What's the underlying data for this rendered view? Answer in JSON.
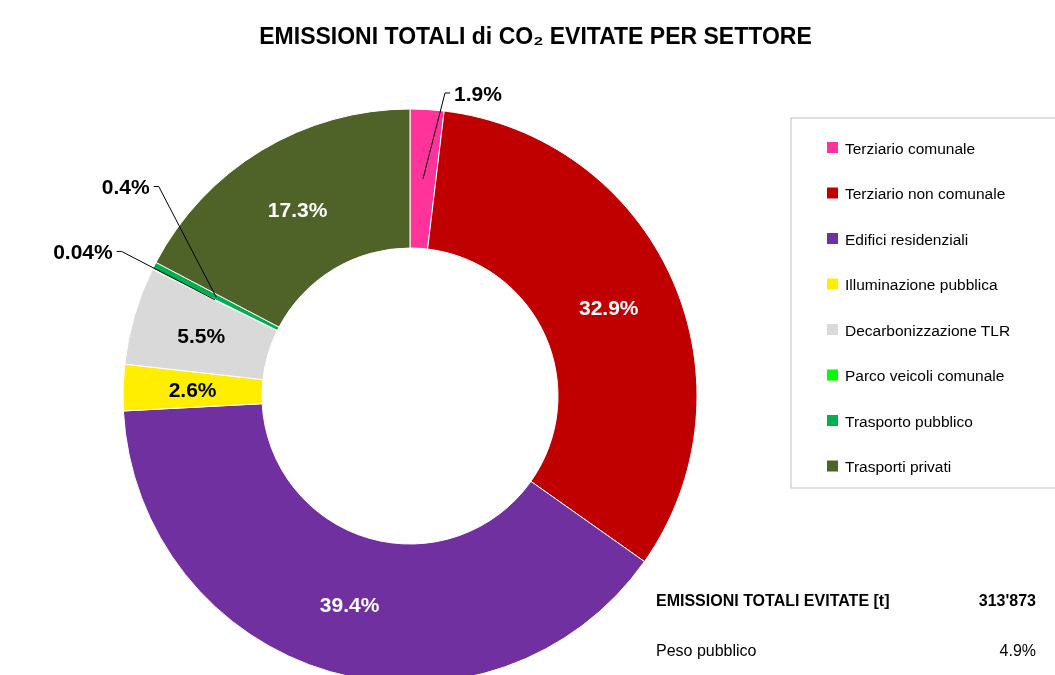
{
  "chart_data": {
    "type": "donut",
    "title": "EMISSIONI TOTALI di CO₂ EVITATE PER SETTORE",
    "categories": [
      "Terziario comunale",
      "Terziario non comunale",
      "Edifici residenziali",
      "Illuminazione pubblica",
      "Decarbonizzazione TLR",
      "Parco veicoli comunale",
      "Trasporto pubblico",
      "Trasporti privati"
    ],
    "values": [
      1.9,
      32.9,
      39.4,
      2.6,
      5.5,
      0.04,
      0.4,
      17.3
    ],
    "value_labels": [
      "1.9%",
      "32.9%",
      "39.4%",
      "2.6%",
      "5.5%",
      "0.04%",
      "0.4%",
      "17.3%"
    ],
    "colors": [
      "#ff3399",
      "#c00000",
      "#7030a0",
      "#ffee00",
      "#d9d9d9",
      "#00ff00",
      "#00b050",
      "#4f6228"
    ],
    "legend": "right",
    "annotations": [
      "EMISSIONI TOTALI EVITATE [t]",
      "313'873",
      "Peso pubblico",
      "4.9%"
    ]
  }
}
